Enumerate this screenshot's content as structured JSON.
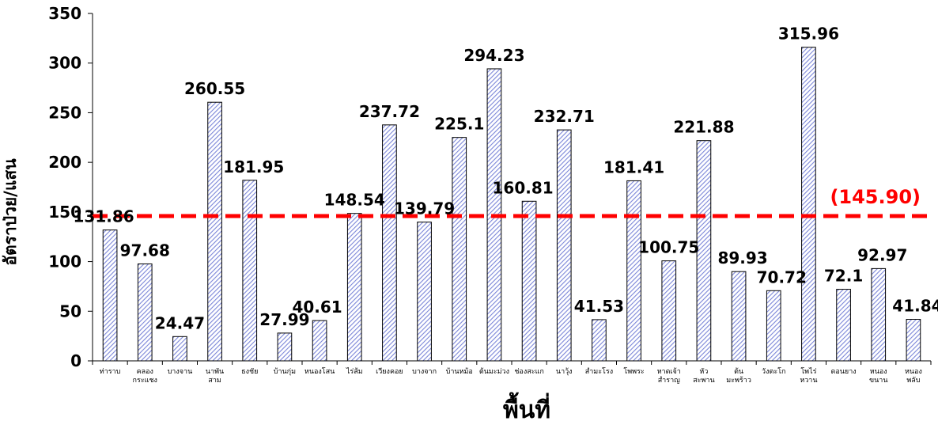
{
  "chart_data": {
    "type": "bar",
    "title": "",
    "xlabel": "พื้นที่",
    "ylabel": "อัตราป่วย/แสน",
    "ylim": [
      0,
      350
    ],
    "yticks": [
      0,
      50,
      100,
      150,
      200,
      250,
      300,
      350
    ],
    "grid": false,
    "legend": "none",
    "bar_pattern": "diagonal-hatch",
    "bar_color": "#7b86d8",
    "average_line": {
      "value": 145.9,
      "label": "(145.90)",
      "color": "#ff0000",
      "style": "dashed"
    },
    "categories": [
      [
        "ท่าราบ"
      ],
      [
        "คลอง",
        "กระแชง"
      ],
      [
        "บางจาน"
      ],
      [
        "นาพัน",
        "สาม"
      ],
      [
        "ธงชัย"
      ],
      [
        "บ้านกุ่ม"
      ],
      [
        "หนองโสน"
      ],
      [
        "ไร่ส้ม"
      ],
      [
        "เวียงคอย"
      ],
      [
        "บางจาก"
      ],
      [
        "บ้านหม้อ"
      ],
      [
        "ต้นมะม่วง"
      ],
      [
        "ช่องสะแก"
      ],
      [
        "นาวุ้ง"
      ],
      [
        "สำมะโรง"
      ],
      [
        "โพพระ"
      ],
      [
        "หาดเจ้า",
        "สำราญ"
      ],
      [
        "หัว",
        "สะพาน"
      ],
      [
        "ต้น",
        "มะพร้าว"
      ],
      [
        "วังตะโก"
      ],
      [
        "โพไร่",
        "หวาน"
      ],
      [
        "ดอนยาง"
      ],
      [
        "หนอง",
        "ขนาน"
      ],
      [
        "หนอง",
        "พลับ"
      ]
    ],
    "values": [
      131.86,
      97.68,
      24.47,
      260.55,
      181.95,
      27.99,
      40.61,
      148.54,
      237.72,
      139.79,
      225.1,
      294.23,
      160.81,
      232.71,
      41.53,
      181.41,
      100.75,
      221.88,
      89.93,
      70.72,
      315.96,
      72.1,
      92.97,
      41.84
    ],
    "value_labels": [
      "131.86",
      "97.68",
      "24.47",
      "260.55",
      "181.95",
      "27.99",
      "40.61",
      "148.54",
      "237.72",
      "139.79",
      "225.1",
      "294.23",
      "160.81",
      "232.71",
      "41.53",
      "181.41",
      "100.75",
      "221.88",
      "89.93",
      "70.72",
      "315.96",
      "72.1",
      "92.97",
      "41.84"
    ]
  }
}
